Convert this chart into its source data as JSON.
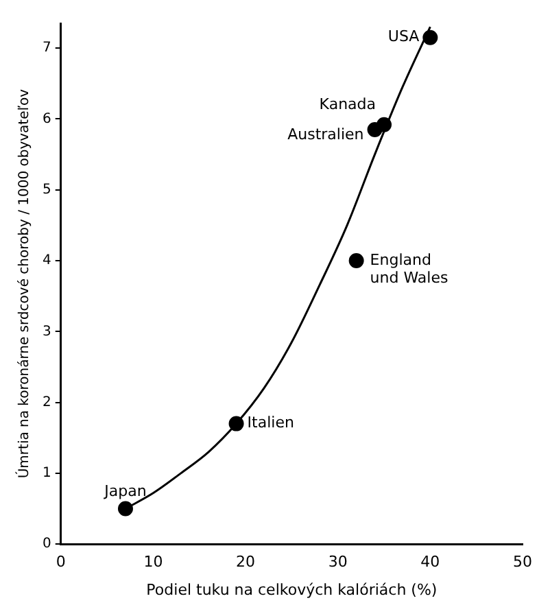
{
  "chart_data": {
    "type": "scatter",
    "xlabel": "Podiel tuku na celkových kalóriách (%)",
    "ylabel": "Úmrtia na koronárne srdcové choroby / 1000 obyvateľov",
    "xlim": [
      0,
      50
    ],
    "xticks": [
      0,
      10,
      20,
      30,
      40,
      50
    ],
    "ylim": [
      0,
      7.35
    ],
    "yticks": [
      0,
      1,
      2,
      3,
      4,
      5,
      6,
      7
    ],
    "grid": false,
    "legend": false,
    "series": [
      {
        "type": "scatter",
        "marker": "circle",
        "color": "#000000",
        "x": [
          7,
          19,
          32,
          34,
          35,
          40
        ],
        "values": [
          0.5,
          1.7,
          4.0,
          5.85,
          5.92,
          7.15
        ]
      },
      {
        "type": "line",
        "marker": "none",
        "color": "#000000",
        "line_style": "solid",
        "x": [
          7,
          10,
          13,
          16,
          19,
          22,
          25,
          28,
          31,
          34,
          37,
          40
        ],
        "values": [
          0.5,
          0.72,
          1.0,
          1.3,
          1.7,
          2.2,
          2.85,
          3.65,
          4.5,
          5.5,
          6.45,
          7.3
        ]
      }
    ],
    "annotations": [
      {
        "text": "Japan",
        "x": 7,
        "y": 0.5
      },
      {
        "text": "Italien",
        "x": 19,
        "y": 1.7
      },
      {
        "text": "England und Wales",
        "x": 32,
        "y": 4.0
      },
      {
        "text": "Australien",
        "x": 34,
        "y": 5.85
      },
      {
        "text": "Kanada",
        "x": 35,
        "y": 5.92
      },
      {
        "text": "USA",
        "x": 40,
        "y": 7.15
      }
    ]
  }
}
